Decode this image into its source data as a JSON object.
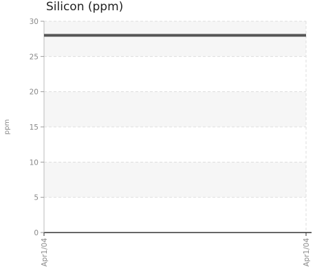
{
  "chart_data": {
    "type": "line",
    "title": "Silicon (ppm)",
    "xlabel": "",
    "ylabel": "ppm",
    "ylim": [
      0,
      30
    ],
    "yticks": [
      0,
      5,
      10,
      15,
      20,
      25,
      30
    ],
    "x": [
      "Apr1/04",
      "Apr1/04"
    ],
    "series": [
      {
        "values": [
          28,
          28
        ]
      }
    ],
    "grid": true,
    "colors": {
      "line": "#555555",
      "band": "#f6f6f6",
      "grid": "#dddddd",
      "axis": "#333333",
      "text": "#888888"
    }
  }
}
